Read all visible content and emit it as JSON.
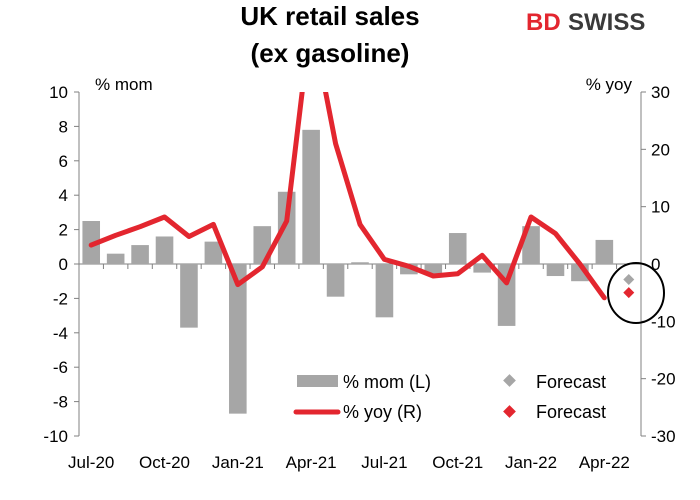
{
  "chart_data": {
    "type": "bar",
    "title_lines": [
      "UK retail sales",
      "(ex gasoline)"
    ],
    "logo": {
      "prefix": "BD",
      "suffix": "SWISS"
    },
    "left_axis": {
      "unit_label": "% mom",
      "ylim": [
        -10,
        10
      ],
      "ticks": [
        10,
        8,
        6,
        4,
        2,
        0,
        -2,
        -4,
        -6,
        -8,
        -10
      ]
    },
    "right_axis": {
      "unit_label": "% yoy",
      "ylim": [
        -30,
        30
      ],
      "ticks": [
        30,
        20,
        10,
        0,
        -10,
        -20,
        -30
      ]
    },
    "x_tick_labels": [
      "Jul-20",
      "Oct-20",
      "Jan-21",
      "Apr-21",
      "Jul-21",
      "Oct-21",
      "Jan-22",
      "Apr-22"
    ],
    "months": [
      "Jul-20",
      "Aug-20",
      "Sep-20",
      "Oct-20",
      "Nov-20",
      "Dec-20",
      "Jan-21",
      "Feb-21",
      "Mar-21",
      "Apr-21",
      "May-21",
      "Jun-21",
      "Jul-21",
      "Aug-21",
      "Sep-21",
      "Oct-21",
      "Nov-21",
      "Dec-21",
      "Jan-22",
      "Feb-22",
      "Mar-22",
      "Apr-22",
      "May-22"
    ],
    "series": [
      {
        "name": "% mom (L)",
        "kind": "bar",
        "axis": "left",
        "color": "#a6a6a6",
        "values": [
          2.5,
          0.6,
          1.1,
          1.6,
          -3.7,
          1.3,
          -8.7,
          2.2,
          4.2,
          7.8,
          -1.9,
          0.1,
          -3.1,
          -0.6,
          -0.6,
          1.8,
          -0.5,
          -3.6,
          2.2,
          -0.7,
          -1.0,
          1.4,
          null
        ]
      },
      {
        "name": "% yoy (R)",
        "kind": "line",
        "axis": "right",
        "color": "#e3262f",
        "values": [
          3.3,
          5.0,
          6.5,
          8.2,
          4.8,
          6.9,
          -3.6,
          -0.5,
          7.5,
          43.0,
          21.0,
          6.9,
          0.8,
          -0.4,
          -2.1,
          -1.7,
          1.5,
          -3.3,
          8.2,
          5.3,
          0.0,
          -5.9,
          null
        ]
      },
      {
        "name": "Forecast",
        "kind": "marker",
        "axis": "left",
        "color": "#a6a6a6",
        "values": [
          null,
          null,
          null,
          null,
          null,
          null,
          null,
          null,
          null,
          null,
          null,
          null,
          null,
          null,
          null,
          null,
          null,
          null,
          null,
          null,
          null,
          null,
          -0.9
        ]
      },
      {
        "name": "Forecast",
        "kind": "marker",
        "axis": "right",
        "color": "#e3262f",
        "values": [
          null,
          null,
          null,
          null,
          null,
          null,
          null,
          null,
          null,
          null,
          null,
          null,
          null,
          null,
          null,
          null,
          null,
          null,
          null,
          null,
          null,
          null,
          -5.0
        ]
      }
    ],
    "annotations": [
      "circle around May-22 forecasts"
    ],
    "grid": false
  }
}
